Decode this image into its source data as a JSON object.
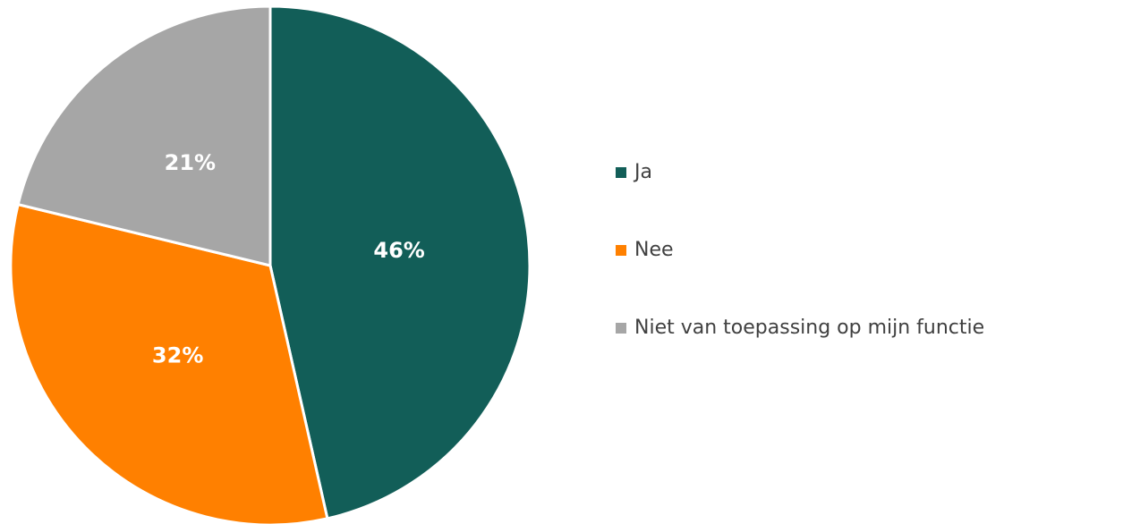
{
  "chart_data": {
    "type": "pie",
    "categories": [
      "Ja",
      "Nee",
      "Niet van toepassing op mijn functie"
    ],
    "values": [
      46,
      32,
      21
    ],
    "value_labels": [
      "46%",
      "32%",
      "21%"
    ],
    "colors": [
      "#125e58",
      "#ff8000",
      "#a6a6a6"
    ],
    "legend": "right"
  }
}
